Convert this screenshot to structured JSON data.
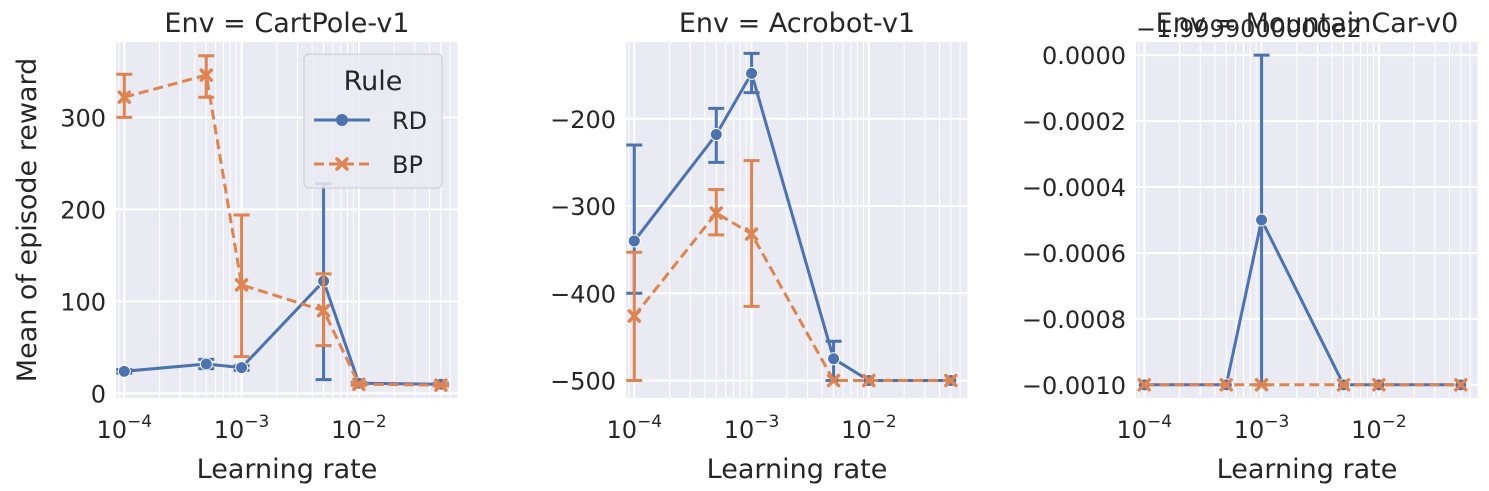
{
  "figure": {
    "ylabel": "Mean of episode reward",
    "legend": {
      "title": "Rule",
      "placement": "top-right of first panel"
    }
  },
  "colors": {
    "RD": "#4c72b0",
    "BP": "#dd8452",
    "panel_bg": "#eaeaf2",
    "grid": "#ffffff"
  },
  "chart_data": [
    {
      "type": "line",
      "title": "Env = CartPole-v1",
      "xlabel": "Learning rate",
      "ylabel": "Mean of episode reward",
      "xscale": "log",
      "xlim": [
        8.5e-05,
        0.07
      ],
      "ylim": [
        -5,
        382
      ],
      "xticks": [
        {
          "value": 0.0001,
          "base": "10",
          "exp": "−4"
        },
        {
          "value": 0.001,
          "base": "10",
          "exp": "−3"
        },
        {
          "value": 0.01,
          "base": "10",
          "exp": "−2"
        }
      ],
      "yticks": [
        {
          "value": 0,
          "label": "0"
        },
        {
          "value": 100,
          "label": "100"
        },
        {
          "value": 200,
          "label": "200"
        },
        {
          "value": 300,
          "label": "300"
        }
      ],
      "grid": true,
      "legend": true,
      "series": [
        {
          "name": "RD",
          "color": "#4c72b0",
          "marker": "circle",
          "dashed": false,
          "x": [
            0.0001,
            0.0005,
            0.001,
            0.005,
            0.01,
            0.05
          ],
          "y": [
            24,
            32,
            28,
            122,
            11,
            10
          ],
          "err_low": [
            22,
            27,
            25,
            15,
            9,
            8
          ],
          "err_high": [
            26,
            37,
            30,
            228,
            12,
            11
          ]
        },
        {
          "name": "BP",
          "color": "#dd8452",
          "marker": "x",
          "dashed": true,
          "x": [
            0.0001,
            0.0005,
            0.001,
            0.005,
            0.01,
            0.05
          ],
          "y": [
            322,
            346,
            118,
            90,
            10,
            9
          ],
          "err_low": [
            300,
            322,
            40,
            52,
            9,
            8
          ],
          "err_high": [
            347,
            367,
            194,
            130,
            11,
            10
          ]
        }
      ]
    },
    {
      "type": "line",
      "title": "Env = Acrobot-v1",
      "xlabel": "Learning rate",
      "xscale": "log",
      "xlim": [
        8.5e-05,
        0.07
      ],
      "ylim": [
        -520,
        -112
      ],
      "xticks": [
        {
          "value": 0.0001,
          "base": "10",
          "exp": "−4"
        },
        {
          "value": 0.001,
          "base": "10",
          "exp": "−3"
        },
        {
          "value": 0.01,
          "base": "10",
          "exp": "−2"
        }
      ],
      "yticks": [
        {
          "value": -500,
          "label": "−500"
        },
        {
          "value": -400,
          "label": "−400"
        },
        {
          "value": -300,
          "label": "−300"
        },
        {
          "value": -200,
          "label": "−200"
        }
      ],
      "grid": true,
      "legend": false,
      "series": [
        {
          "name": "RD",
          "color": "#4c72b0",
          "marker": "circle",
          "dashed": false,
          "x": [
            0.0001,
            0.0005,
            0.001,
            0.005,
            0.01,
            0.05
          ],
          "y": [
            -340,
            -218,
            -148,
            -475,
            -500,
            -500
          ],
          "err_low": [
            -400,
            -250,
            -170,
            -500,
            -500,
            -500
          ],
          "err_high": [
            -230,
            -188,
            -125,
            -455,
            -500,
            -500
          ]
        },
        {
          "name": "BP",
          "color": "#dd8452",
          "marker": "x",
          "dashed": true,
          "x": [
            0.0001,
            0.0005,
            0.001,
            0.005,
            0.01,
            0.05
          ],
          "y": [
            -426,
            -308,
            -332,
            -500,
            -500,
            -500
          ],
          "err_low": [
            -500,
            -333,
            -415,
            -500,
            -500,
            -500
          ],
          "err_high": [
            -353,
            -281,
            -248,
            -500,
            -500,
            -500
          ]
        }
      ]
    },
    {
      "type": "line",
      "title": "Env = MountainCar-v0",
      "offset_text": "−1.9999000000e2",
      "xlabel": "Learning rate",
      "xscale": "log",
      "xlim": [
        8.5e-05,
        0.07
      ],
      "ylim": [
        -0.00104,
        4e-05
      ],
      "xticks": [
        {
          "value": 0.0001,
          "base": "10",
          "exp": "−4"
        },
        {
          "value": 0.001,
          "base": "10",
          "exp": "−3"
        },
        {
          "value": 0.01,
          "base": "10",
          "exp": "−2"
        }
      ],
      "yticks": [
        {
          "value": -0.001,
          "label": "−0.0010"
        },
        {
          "value": -0.0008,
          "label": "−0.0008"
        },
        {
          "value": -0.0006,
          "label": "−0.0006"
        },
        {
          "value": -0.0004,
          "label": "−0.0004"
        },
        {
          "value": -0.0002,
          "label": "−0.0002"
        },
        {
          "value": 0,
          "label": "0.0000"
        }
      ],
      "grid": true,
      "legend": false,
      "series": [
        {
          "name": "RD",
          "color": "#4c72b0",
          "marker": "circle",
          "dashed": false,
          "x": [
            0.0001,
            0.0005,
            0.001,
            0.005,
            0.01,
            0.05
          ],
          "y": [
            -0.001,
            -0.001,
            -0.0005,
            -0.001,
            -0.001,
            -0.001
          ],
          "err_low": [
            -0.001,
            -0.001,
            -0.001,
            -0.001,
            -0.001,
            -0.001
          ],
          "err_high": [
            -0.001,
            -0.001,
            0,
            -0.001,
            -0.001,
            -0.001
          ]
        },
        {
          "name": "BP",
          "color": "#dd8452",
          "marker": "x",
          "dashed": true,
          "x": [
            0.0001,
            0.0005,
            0.001,
            0.005,
            0.01,
            0.05
          ],
          "y": [
            -0.001,
            -0.001,
            -0.001,
            -0.001,
            -0.001,
            -0.001
          ],
          "err_low": [
            -0.001,
            -0.001,
            -0.001,
            -0.001,
            -0.001,
            -0.001
          ],
          "err_high": [
            -0.001,
            -0.001,
            -0.001,
            -0.001,
            -0.001,
            -0.001
          ]
        }
      ]
    }
  ]
}
